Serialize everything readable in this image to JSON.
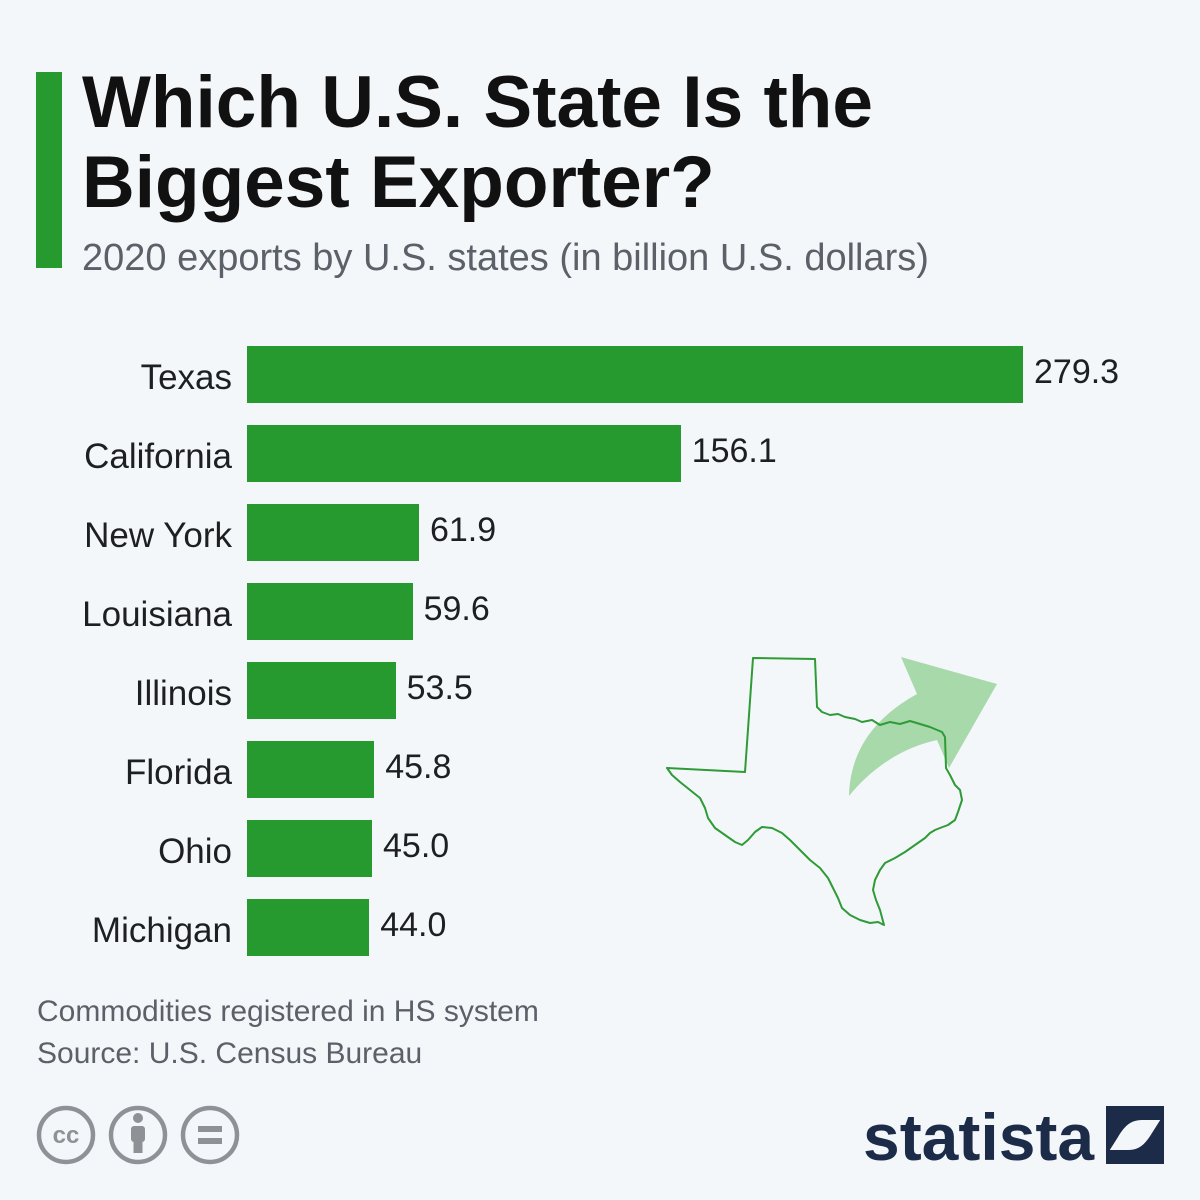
{
  "chart_data": {
    "type": "bar",
    "orientation": "horizontal",
    "title": "Which U.S. State Is the Biggest Exporter?",
    "subtitle": "2020 exports by U.S. states (in billion U.S. dollars)",
    "xlabel": "",
    "ylabel": "",
    "categories": [
      "Texas",
      "California",
      "New York",
      "Louisiana",
      "Illinois",
      "Florida",
      "Ohio",
      "Michigan"
    ],
    "values": [
      279.3,
      156.1,
      61.9,
      59.6,
      53.5,
      45.8,
      45.0,
      44.0
    ],
    "data_labels": [
      "279.3",
      "156.1",
      "61.9",
      "59.6",
      "53.5",
      "45.8",
      "45.0",
      "44.0"
    ],
    "xlim": [
      0,
      279.3
    ],
    "value_axis_visible": false,
    "grid": false,
    "legend": "none"
  },
  "footer": {
    "note": "Commodities registered in HS system",
    "source": "Source: U.S. Census Bureau"
  },
  "illustration": {
    "map_icon": "texas-map-outline-icon",
    "arrow_icon": "up-right-arrow-icon"
  },
  "license_icons": [
    {
      "icon": "cc-icon",
      "text": "cc"
    },
    {
      "icon": "attribution-icon"
    },
    {
      "icon": "no-derivatives-icon"
    }
  ],
  "logo": {
    "text": "statista",
    "icon": "statista-logo-icon"
  },
  "colors": {
    "background": "#f4f7fa",
    "accent": "#26992f",
    "bar": "#26992f",
    "text": "#1e1f21",
    "muted_text": "#5b6168",
    "map_outline": "#2e9b37",
    "arrow": "#a3d7a7",
    "license_icon": "#8d9297",
    "logo": "#1b2b48"
  }
}
